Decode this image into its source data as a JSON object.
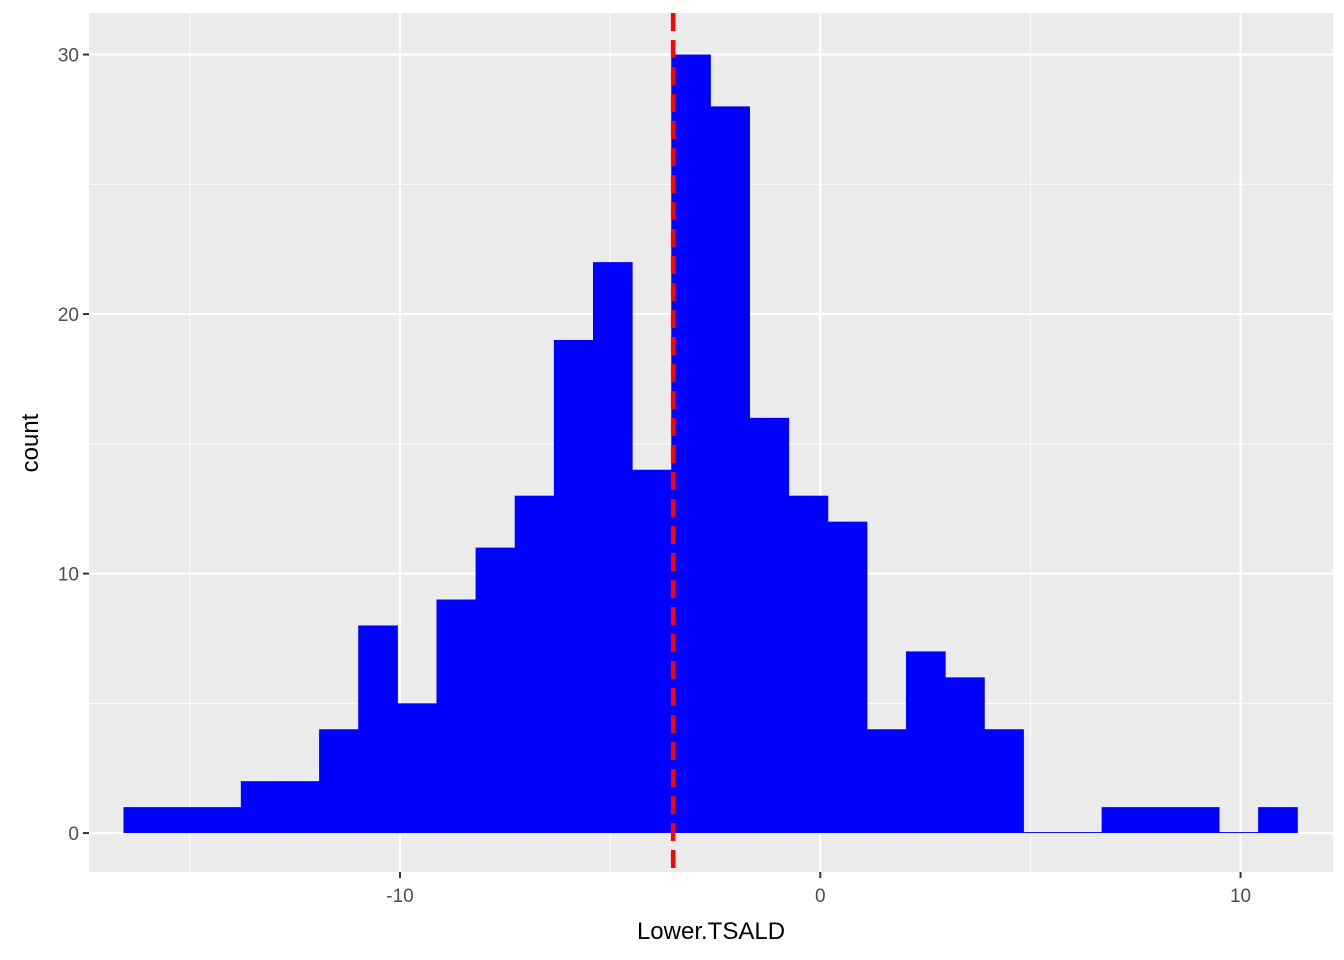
{
  "chart_data": {
    "type": "bar",
    "subtype": "histogram",
    "xlabel": "Lower.TSALD",
    "ylabel": "count",
    "xlim": [
      -17.4,
      12.2
    ],
    "ylim": [
      -1.5,
      31.6
    ],
    "xticks": [
      -10,
      0,
      10
    ],
    "xtick_labels": [
      "-10",
      "0",
      "10"
    ],
    "yticks": [
      0,
      10,
      20,
      30
    ],
    "ytick_labels": [
      "0",
      "10",
      "20",
      "30"
    ],
    "x_minor_gridlines": [
      -15,
      -5,
      5
    ],
    "y_minor_gridlines": [
      5,
      15,
      25
    ],
    "grid": true,
    "background": "#ebebeb",
    "bin_width": 0.931,
    "bin_start": -16.58,
    "counts": [
      1,
      1,
      1,
      2,
      2,
      4,
      8,
      5,
      9,
      11,
      13,
      19,
      22,
      14,
      30,
      28,
      16,
      13,
      12,
      4,
      7,
      6,
      4,
      0,
      0,
      1,
      1,
      1,
      0,
      1
    ],
    "bar_color": "#0000ff",
    "reference_line": {
      "x": -3.5,
      "color": "#ff0000",
      "style": "dashed"
    }
  }
}
